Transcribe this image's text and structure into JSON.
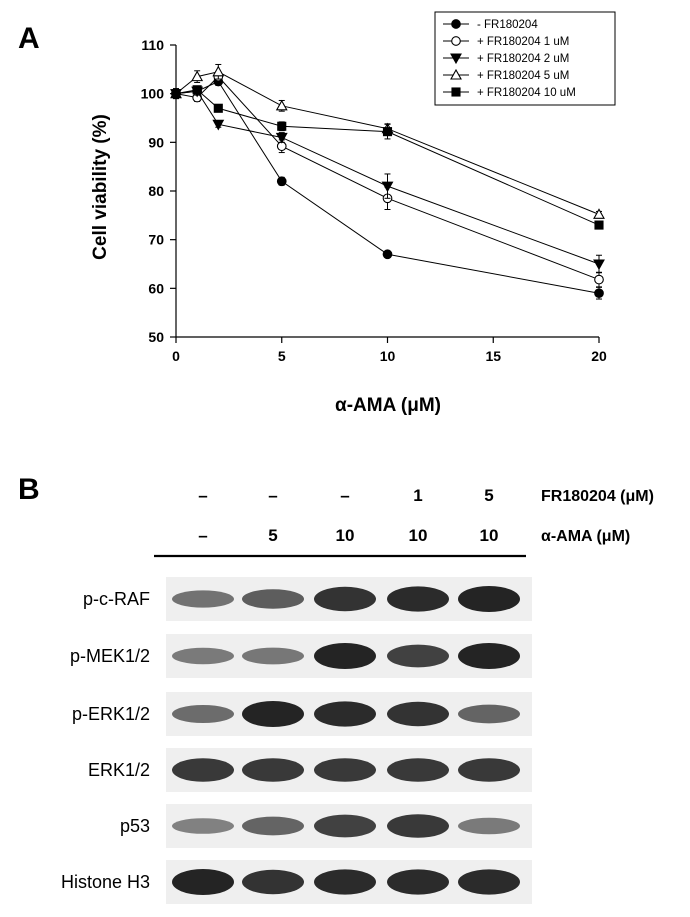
{
  "panel_a": {
    "letter": "A"
  },
  "panel_b": {
    "letter": "B"
  },
  "chart_data": {
    "type": "line",
    "xlabel": "α-AMA (μM)",
    "ylabel": "Cell viability (%)",
    "xlim": [
      0,
      20
    ],
    "ylim": [
      50,
      110
    ],
    "xticks": [
      0,
      5,
      10,
      15,
      20
    ],
    "yticks": [
      50,
      60,
      70,
      80,
      90,
      100,
      110
    ],
    "grid": false,
    "legend_position": "top-right",
    "x": [
      0,
      1,
      2,
      5,
      10,
      20
    ],
    "series": [
      {
        "name": "- FR180204",
        "marker": "circle-filled",
        "values": [
          100,
          100.5,
          102.5,
          82,
          67,
          59
        ],
        "errors": [
          1,
          0.6,
          0.8,
          0.8,
          0.6,
          1.2
        ]
      },
      {
        "name": "+ FR180204 1 uM",
        "marker": "circle-open",
        "values": [
          100,
          99.2,
          103.5,
          89.2,
          78.5,
          61.8
        ],
        "errors": [
          1,
          0.8,
          1,
          1.3,
          2.3,
          1.5
        ]
      },
      {
        "name": "+ FR180204 2 uM",
        "marker": "triangle-down-filled",
        "values": [
          100,
          100.5,
          93.7,
          91,
          81,
          65
        ],
        "errors": [
          1,
          0.8,
          0.6,
          1,
          2.5,
          1.8
        ]
      },
      {
        "name": "+ FR180204 5 uM",
        "marker": "triangle-up-open",
        "values": [
          100,
          103.5,
          104.5,
          97.5,
          92.8,
          75.2
        ],
        "errors": [
          1,
          1.2,
          1.5,
          1.1,
          1,
          0.6
        ]
      },
      {
        "name": "+ FR180204 10 uM",
        "marker": "square-filled",
        "values": [
          100,
          100.8,
          97,
          93.3,
          92.2,
          73
        ],
        "errors": [
          1,
          0.7,
          0.6,
          0.9,
          1.5,
          0.6
        ]
      }
    ]
  },
  "blot": {
    "conditions": [
      {
        "fr180204": "–",
        "alpha_ama": "–"
      },
      {
        "fr180204": "–",
        "alpha_ama": "5"
      },
      {
        "fr180204": "–",
        "alpha_ama": "10"
      },
      {
        "fr180204": "1",
        "alpha_ama": "10"
      },
      {
        "fr180204": "5",
        "alpha_ama": "10"
      }
    ],
    "fr_header": "FR180204 (μM)",
    "ama_header": "α-AMA (μM)",
    "rows": [
      {
        "label": "p-c-RAF",
        "intensities": [
          0.45,
          0.6,
          0.9,
          0.95,
          1.0
        ]
      },
      {
        "label": "p-MEK1/2",
        "intensities": [
          0.4,
          0.42,
          1.0,
          0.8,
          1.0
        ]
      },
      {
        "label": "p-ERK1/2",
        "intensities": [
          0.5,
          1.0,
          0.95,
          0.9,
          0.55
        ]
      },
      {
        "label": "ERK1/2",
        "intensities": [
          0.85,
          0.85,
          0.85,
          0.85,
          0.85
        ]
      },
      {
        "label": "p53",
        "intensities": [
          0.35,
          0.55,
          0.8,
          0.85,
          0.4
        ]
      },
      {
        "label": "Histone H3",
        "intensities": [
          1.0,
          0.9,
          0.95,
          0.95,
          0.95
        ]
      }
    ]
  }
}
